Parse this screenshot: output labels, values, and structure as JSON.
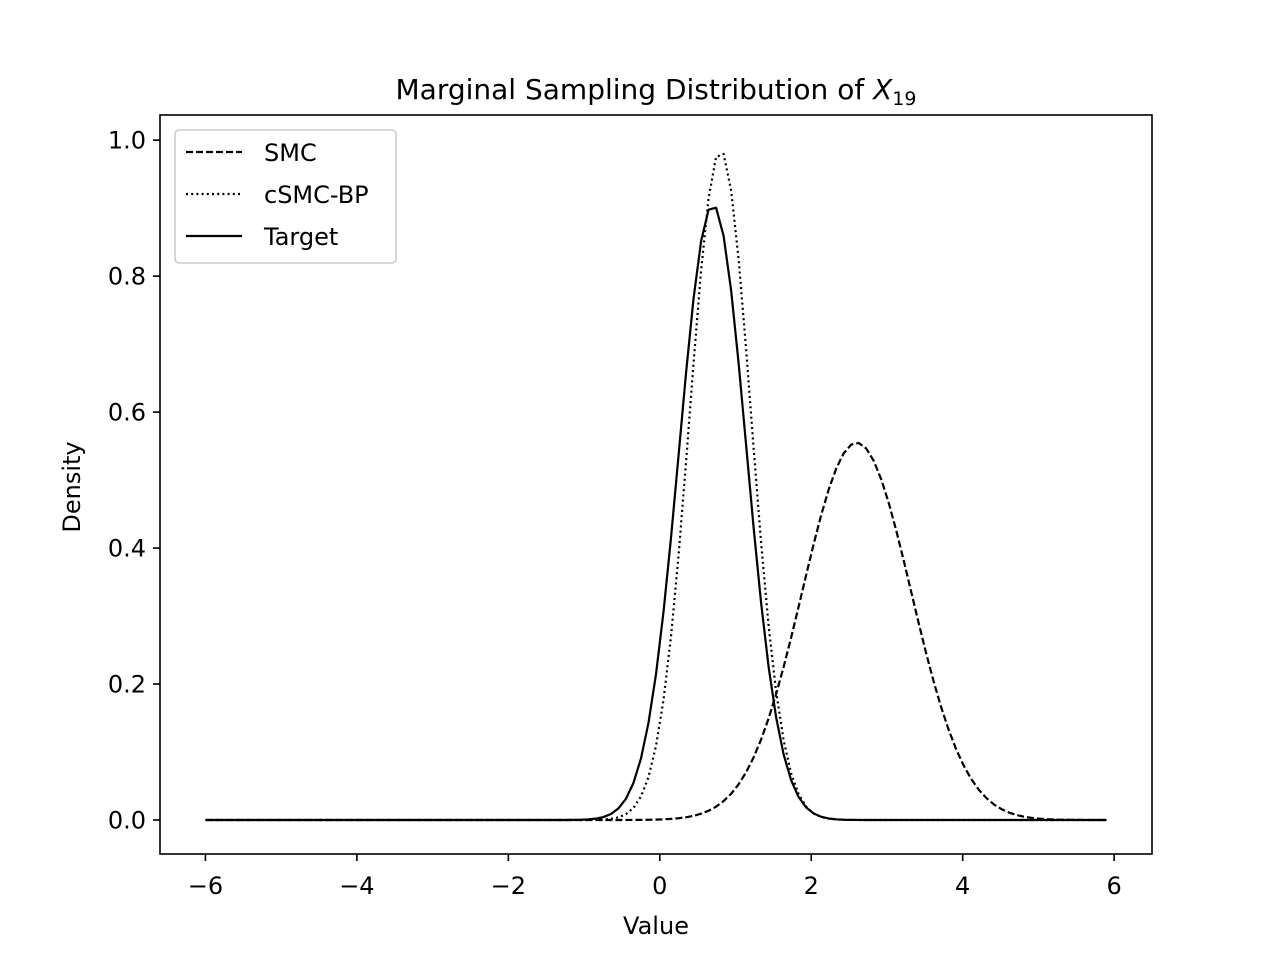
{
  "chart_data": {
    "type": "line",
    "title": {
      "prefix": "Marginal Sampling Distribution of ",
      "var": "X",
      "subscript": "19"
    },
    "xlabel": "Value",
    "ylabel": "Density",
    "xlim": [
      -6.6,
      6.5
    ],
    "ylim": [
      -0.05,
      1.037
    ],
    "xticks": [
      -6,
      -4,
      -2,
      0,
      2,
      4,
      6
    ],
    "xtick_labels": [
      "−6",
      "−4",
      "−2",
      "0",
      "2",
      "4",
      "6"
    ],
    "yticks": [
      0.0,
      0.2,
      0.4,
      0.6,
      0.8,
      1.0
    ],
    "ytick_labels": [
      "0.0",
      "0.2",
      "0.4",
      "0.6",
      "0.8",
      "1.0"
    ],
    "grid": false,
    "legend_position": "top-left",
    "line_color": "#000000",
    "x_range": [
      -6.0,
      5.9
    ],
    "series": [
      {
        "name": "SMC",
        "style": "dashed",
        "distribution": "normal",
        "mean": 2.6,
        "sd": 0.718,
        "peak": 0.555
      },
      {
        "name": "cSMC-BP",
        "style": "dotted",
        "distribution": "normal",
        "mean": 0.8,
        "sd": 0.405,
        "peak": 0.985
      },
      {
        "name": "Target",
        "style": "solid",
        "distribution": "normal",
        "mean": 0.7,
        "sd": 0.442,
        "peak": 0.905
      }
    ]
  }
}
